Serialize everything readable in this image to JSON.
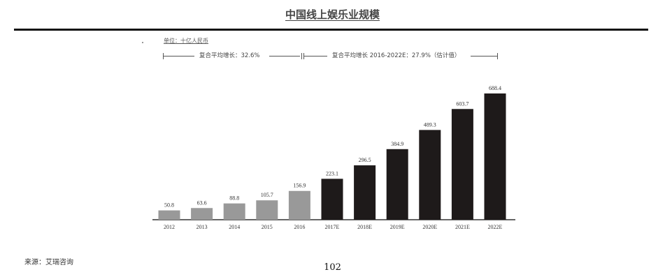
{
  "page": {
    "title": "中国线上娱乐业规模",
    "source": "来源：艾瑞咨询",
    "page_number": "102"
  },
  "chart_data": {
    "type": "bar",
    "title": "中国线上娱乐业规模",
    "unit": "单位：十亿人民币",
    "cagr_labels": [
      "复合平均增长：32.6%",
      "复合平均增长 2016-2022E：27.9%（估计值）"
    ],
    "categories": [
      "2012",
      "2013",
      "2014",
      "2015",
      "2016",
      "2017E",
      "2018E",
      "2019E",
      "2020E",
      "2021E",
      "2022E"
    ],
    "values": [
      50.8,
      63.6,
      88.8,
      105.7,
      156.9,
      223.1,
      296.5,
      384.9,
      489.3,
      603.7,
      688.4
    ],
    "value_labels": [
      "50.8",
      "63.6",
      "88.8",
      "105.7",
      "156.9",
      "223.1",
      "296.5",
      "384.9",
      "489.3",
      "603.7",
      "688.4"
    ],
    "estimate_flags": [
      false,
      false,
      false,
      false,
      false,
      true,
      true,
      true,
      true,
      true,
      true
    ],
    "colors": {
      "historical": "#999999",
      "estimate": "#1e1a1a",
      "axis": "#333333"
    },
    "ylim": [
      0,
      688.4
    ],
    "grid": false,
    "legend": "none"
  }
}
